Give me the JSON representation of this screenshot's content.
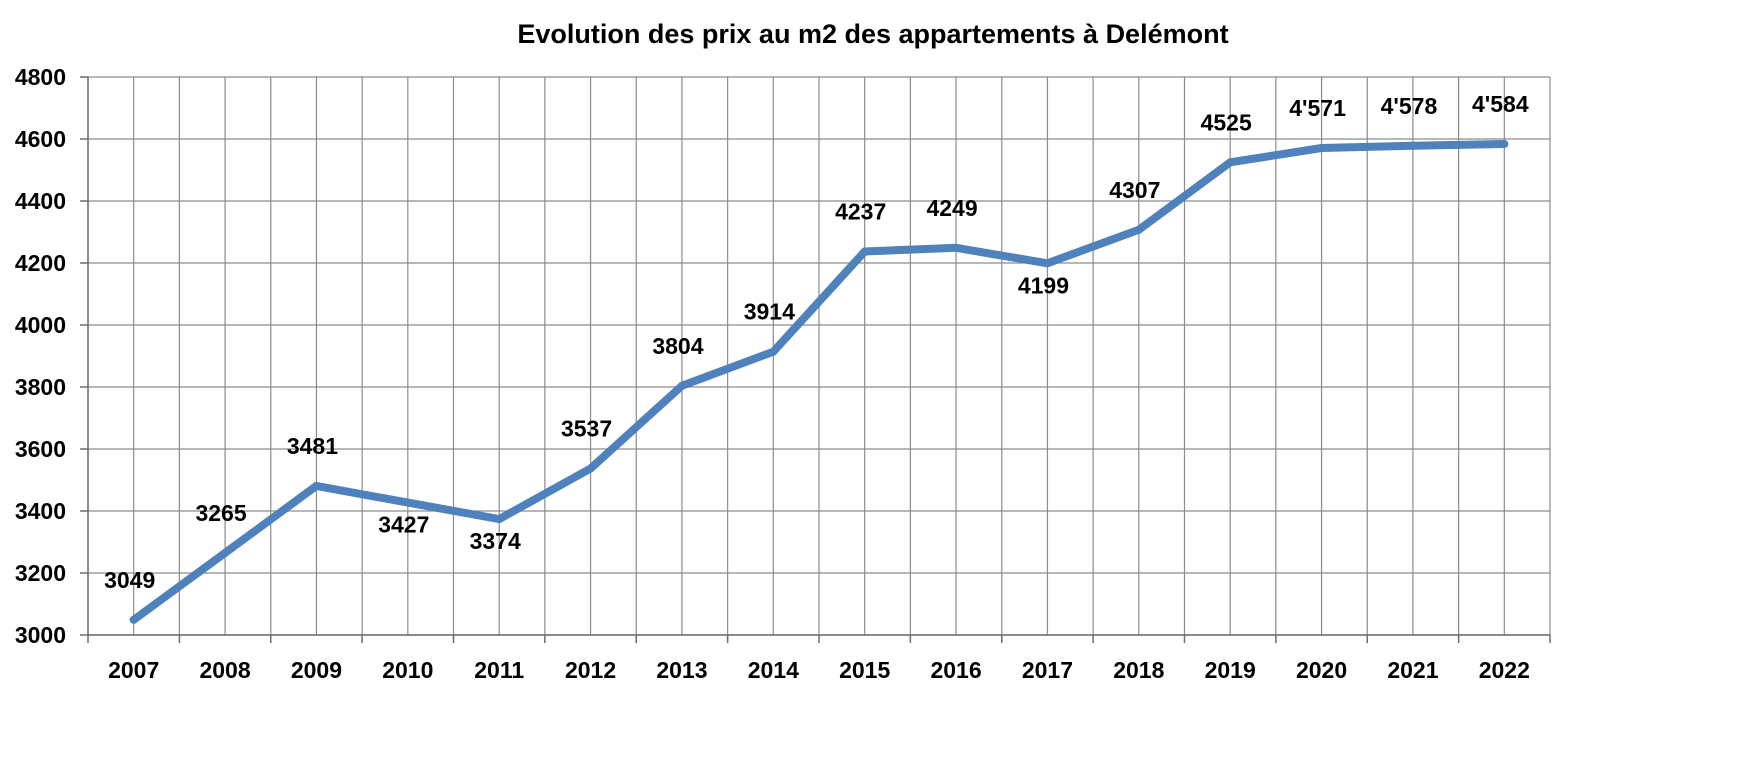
{
  "chart_data": {
    "type": "line",
    "title": "Evolution des prix au m2 des appartements à Delémont",
    "xlabel": "",
    "ylabel": "",
    "categories": [
      "2007",
      "2008",
      "2009",
      "2010",
      "2011",
      "2012",
      "2013",
      "2014",
      "2015",
      "2016",
      "2017",
      "2018",
      "2019",
      "2020",
      "2021",
      "2022"
    ],
    "series": [
      {
        "values": [
          3049,
          3265,
          3481,
          3427,
          3374,
          3537,
          3804,
          3914,
          4237,
          4249,
          4199,
          4307,
          4525,
          4571,
          4578,
          4584
        ],
        "labels": [
          "3049",
          "3265",
          "3481",
          "3427",
          "3374",
          "3537",
          "3804",
          "3914",
          "4237",
          "4249",
          "4199",
          "4307",
          "4525",
          "4'571",
          "4'578",
          "4'584"
        ],
        "label_positions": [
          "above",
          "above",
          "above",
          "below",
          "below",
          "above",
          "above",
          "above",
          "above",
          "above",
          "below",
          "above",
          "above",
          "above",
          "above",
          "above"
        ]
      }
    ],
    "ylim": [
      3000,
      4800
    ],
    "yticks": [
      "3000",
      "3200",
      "3400",
      "3600",
      "3800",
      "4000",
      "4200",
      "4400",
      "4600",
      "4800"
    ],
    "grid": true,
    "legend": "none",
    "colors": {
      "line": "#4F81BD",
      "grid": "#8C8C8C",
      "text": "#000000"
    }
  }
}
